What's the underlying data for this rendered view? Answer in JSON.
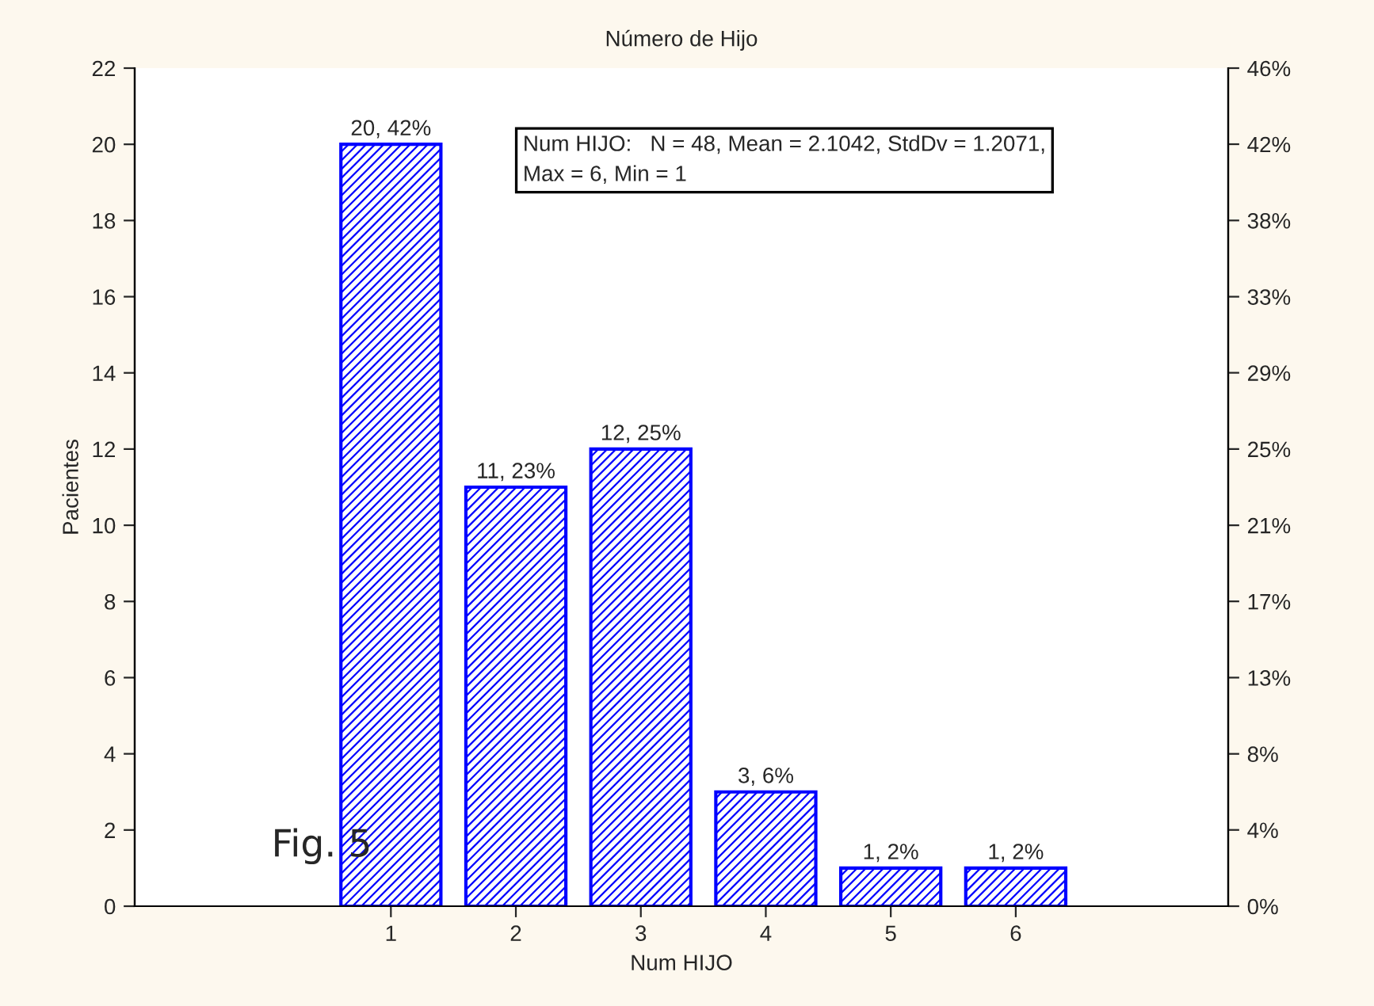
{
  "chart_data": {
    "type": "bar",
    "title": "Número de Hijo",
    "xlabel": "Num HIJO",
    "ylabel": "Pacientes",
    "x": [
      1,
      2,
      3,
      4,
      5,
      6
    ],
    "series": [
      {
        "color": "#0000ff",
        "values": [
          20,
          11,
          12,
          3,
          1,
          1
        ]
      }
    ],
    "value_labels": [
      "20, 42%",
      "11, 23%",
      "12, 25%",
      "3, 6%",
      "1, 2%",
      "1, 2%"
    ],
    "xlim": [
      -1.05,
      7.7
    ],
    "xticks": [
      1,
      2,
      3,
      4,
      5,
      6
    ],
    "ylim": [
      0,
      22
    ],
    "yticks": [
      0,
      2,
      4,
      6,
      8,
      10,
      12,
      14,
      16,
      18,
      20,
      22
    ],
    "y2lim": [
      0,
      45.83
    ],
    "y2ticks": [
      {
        "value": 0,
        "label": "0%"
      },
      {
        "value": 4.17,
        "label": "4%"
      },
      {
        "value": 8.33,
        "label": "8%"
      },
      {
        "value": 12.5,
        "label": "13%"
      },
      {
        "value": 16.67,
        "label": "17%"
      },
      {
        "value": 20.83,
        "label": "21%"
      },
      {
        "value": 25,
        "label": "25%"
      },
      {
        "value": 29.17,
        "label": "29%"
      },
      {
        "value": 33.33,
        "label": "33%"
      },
      {
        "value": 37.5,
        "label": "38%"
      },
      {
        "value": 41.67,
        "label": "42%"
      },
      {
        "value": 45.83,
        "label": "46%"
      }
    ],
    "annotations": [
      "Num HIJO:   N = 48, Mean = 2.1042, StdDv = 1.2071,\nMax = 6, Min = 1",
      "Fig. 5"
    ],
    "grid": false,
    "legend": false
  }
}
